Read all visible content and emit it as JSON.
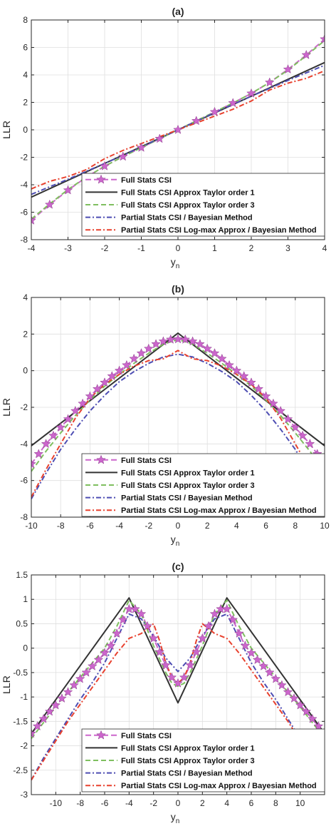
{
  "styles": {
    "full_stats": {
      "color": "#CC66CC",
      "dash": "8,4",
      "marker": "star"
    },
    "taylor1": {
      "color": "#333333",
      "dash": ""
    },
    "taylor3": {
      "color": "#7FBF5F",
      "dash": "7,4"
    },
    "partial_bayes": {
      "color": "#4D4DB3",
      "dash": "7,3,2,3"
    },
    "partial_logmax": {
      "color": "#E8412E",
      "dash": "7,3,2,3"
    }
  },
  "chart_data": [
    {
      "type": "line",
      "title": "(a)",
      "xlabel": "y",
      "xlabel_sub": "n",
      "ylabel": "LLR",
      "xlim": [
        -4,
        4
      ],
      "ylim": [
        -8,
        8
      ],
      "xticks": [
        -4,
        -3,
        -2,
        -1,
        0,
        1,
        2,
        3,
        4
      ],
      "yticks": [
        -8,
        -6,
        -4,
        -2,
        0,
        2,
        4,
        6,
        8
      ],
      "grid": true,
      "legend_position": "bottom-right",
      "series": [
        {
          "name": "Full Stats CSI",
          "style": "full_stats",
          "x": [
            -4,
            -3.5,
            -3,
            -2.5,
            -2,
            -1.5,
            -1,
            -0.5,
            0,
            0.5,
            1,
            1.5,
            2,
            2.5,
            3,
            3.5,
            4
          ],
          "y": [
            -6.6,
            -5.45,
            -4.4,
            -3.45,
            -2.65,
            -1.95,
            -1.3,
            -0.65,
            0,
            0.65,
            1.3,
            1.95,
            2.65,
            3.45,
            4.4,
            5.45,
            6.6
          ]
        },
        {
          "name": "Full Stats CSI Approx Taylor order 1",
          "style": "taylor1",
          "x": [
            -4,
            4
          ],
          "y": [
            -4.9,
            4.9
          ]
        },
        {
          "name": "Full Stats CSI Approx Taylor order 3",
          "style": "taylor3",
          "x": [
            -4,
            -3.5,
            -3,
            -2.5,
            -2,
            -1.5,
            -1,
            -0.5,
            0,
            0.5,
            1,
            1.5,
            2,
            2.5,
            3,
            3.5,
            4
          ],
          "y": [
            -6.5,
            -5.4,
            -4.35,
            -3.45,
            -2.65,
            -1.95,
            -1.3,
            -0.65,
            0,
            0.65,
            1.3,
            1.95,
            2.65,
            3.45,
            4.35,
            5.4,
            6.5
          ]
        },
        {
          "name": "Partial Stats CSI / Bayesian Method",
          "style": "partial_bayes",
          "x": [
            -4,
            -3,
            -2,
            -1,
            0,
            1,
            2,
            3,
            4
          ],
          "y": [
            -4.7,
            -3.6,
            -2.45,
            -1.25,
            0,
            1.25,
            2.45,
            3.6,
            4.7
          ]
        },
        {
          "name": "Partial Stats CSI Log-max Approx / Bayesian Method",
          "style": "partial_logmax",
          "x": [
            -4,
            -3.5,
            -3,
            -2.5,
            -2,
            -1.5,
            -1,
            -0.5,
            0,
            0.5,
            1,
            1.5,
            2,
            2.5,
            3,
            3.5,
            4
          ],
          "y": [
            -4.3,
            -3.75,
            -3.4,
            -2.9,
            -2.1,
            -1.5,
            -1.0,
            -0.5,
            0,
            0.5,
            1.0,
            1.5,
            2.1,
            2.9,
            3.4,
            3.75,
            4.3
          ]
        }
      ]
    },
    {
      "type": "line",
      "title": "(b)",
      "xlabel": "y",
      "xlabel_sub": "n",
      "ylabel": "LLR",
      "xlim": [
        -10,
        10
      ],
      "ylim": [
        -8,
        4
      ],
      "xticks": [
        -10,
        -8,
        -6,
        -4,
        -2,
        0,
        2,
        4,
        6,
        8,
        10
      ],
      "yticks": [
        -8,
        -6,
        -4,
        -2,
        0,
        2,
        4
      ],
      "grid": true,
      "legend_position": "bottom-right",
      "series": [
        {
          "name": "Full Stats CSI",
          "style": "full_stats",
          "x": [
            -10,
            -9.5,
            -9,
            -8.5,
            -8,
            -7.5,
            -7,
            -6.5,
            -6,
            -5.5,
            -5,
            -4.5,
            -4,
            -3.5,
            -3,
            -2.5,
            -2,
            -1.5,
            -1,
            -0.5,
            0,
            0.5,
            1,
            1.5,
            2,
            2.5,
            3,
            3.5,
            4,
            4.5,
            5,
            5.5,
            6,
            6.5,
            7,
            7.5,
            8,
            8.5,
            9,
            9.5,
            10
          ],
          "y": [
            -5.1,
            -4.55,
            -4.0,
            -3.55,
            -3.1,
            -2.65,
            -2.2,
            -1.8,
            -1.4,
            -1.0,
            -0.65,
            -0.3,
            0.0,
            0.3,
            0.65,
            0.95,
            1.2,
            1.45,
            1.6,
            1.7,
            1.72,
            1.7,
            1.6,
            1.45,
            1.2,
            0.95,
            0.65,
            0.3,
            0.0,
            -0.3,
            -0.65,
            -1.0,
            -1.4,
            -1.8,
            -2.2,
            -2.65,
            -3.1,
            -3.55,
            -4.0,
            -4.55,
            -5.1
          ]
        },
        {
          "name": "Full Stats CSI Approx Taylor order 1",
          "style": "taylor1",
          "x": [
            -10,
            0,
            10
          ],
          "y": [
            -4.1,
            2.05,
            -4.1
          ]
        },
        {
          "name": "Full Stats CSI Approx Taylor order 3",
          "style": "taylor3",
          "x": [
            -10,
            -9,
            -8,
            -7,
            -6,
            -5,
            -4,
            -3,
            -2,
            -1,
            0,
            1,
            2,
            3,
            4,
            5,
            6,
            7,
            8,
            9,
            10
          ],
          "y": [
            -5.5,
            -4.4,
            -3.4,
            -2.45,
            -1.6,
            -0.85,
            -0.2,
            0.4,
            0.95,
            1.45,
            1.7,
            1.45,
            0.95,
            0.4,
            -0.2,
            -0.85,
            -1.6,
            -2.45,
            -3.4,
            -4.4,
            -5.5
          ]
        },
        {
          "name": "Partial Stats CSI / Bayesian Method",
          "style": "partial_bayes",
          "x": [
            -10,
            -9,
            -8,
            -7,
            -6,
            -5,
            -4,
            -3,
            -2,
            -1,
            0,
            1,
            2,
            3,
            4,
            5,
            6,
            7,
            8,
            9,
            10
          ],
          "y": [
            -7.0,
            -5.6,
            -4.3,
            -3.2,
            -2.2,
            -1.35,
            -0.6,
            -0.05,
            0.4,
            0.75,
            0.9,
            0.75,
            0.4,
            -0.05,
            -0.6,
            -1.35,
            -2.2,
            -3.2,
            -4.3,
            -5.6,
            -7.0
          ]
        },
        {
          "name": "Partial Stats CSI Log-max Approx / Bayesian Method",
          "style": "partial_logmax",
          "x": [
            -10,
            -9,
            -8,
            -7,
            -6,
            -5,
            -4,
            -3,
            -2,
            -1,
            0,
            1,
            2,
            3,
            4,
            5,
            6,
            7,
            8,
            9,
            10
          ],
          "y": [
            -6.9,
            -5.4,
            -4.0,
            -2.6,
            -1.5,
            -0.75,
            -0.2,
            0.25,
            0.55,
            0.65,
            1.1,
            0.65,
            0.55,
            0.25,
            -0.2,
            -0.75,
            -1.5,
            -2.6,
            -4.0,
            -5.4,
            -6.9
          ]
        }
      ]
    },
    {
      "type": "line",
      "title": "(c)",
      "xlabel": "y",
      "xlabel_sub": "n",
      "ylabel": "LLR",
      "xlim": [
        -12,
        12
      ],
      "ylim": [
        -3,
        1.5
      ],
      "xticks": [
        -10,
        -8,
        -6,
        -4,
        -2,
        0,
        2,
        4,
        6,
        8,
        10
      ],
      "yticks": [
        -3,
        -2.5,
        -2,
        -1.5,
        -1,
        -0.5,
        0,
        0.5,
        1,
        1.5
      ],
      "grid": true,
      "legend_position": "bottom-right",
      "series": [
        {
          "name": "Full Stats CSI",
          "style": "full_stats",
          "x": [
            -12,
            -11.5,
            -11,
            -10.5,
            -10,
            -9.5,
            -9,
            -8.5,
            -8,
            -7.5,
            -7,
            -6.5,
            -6,
            -5.5,
            -5,
            -4.5,
            -4,
            -3.5,
            -3,
            -2.5,
            -2,
            -1.5,
            -1,
            -0.5,
            0,
            0.5,
            1,
            1.5,
            2,
            2.5,
            3,
            3.5,
            4,
            4.5,
            5,
            5.5,
            6,
            6.5,
            7,
            7.5,
            8,
            8.5,
            9,
            9.5,
            10,
            10.5,
            11,
            11.5,
            12
          ],
          "y": [
            -1.75,
            -1.6,
            -1.45,
            -1.3,
            -1.17,
            -1.03,
            -0.9,
            -0.76,
            -0.63,
            -0.5,
            -0.37,
            -0.24,
            -0.1,
            0.05,
            0.3,
            0.58,
            0.8,
            0.8,
            0.7,
            0.45,
            0.2,
            -0.08,
            -0.35,
            -0.6,
            -0.72,
            -0.6,
            -0.35,
            -0.08,
            0.2,
            0.45,
            0.7,
            0.8,
            0.8,
            0.58,
            0.3,
            0.05,
            -0.1,
            -0.24,
            -0.37,
            -0.5,
            -0.63,
            -0.76,
            -0.9,
            -1.03,
            -1.17,
            -1.3,
            -1.45,
            -1.6,
            -1.75
          ]
        },
        {
          "name": "Full Stats CSI Approx Taylor order 1",
          "style": "taylor1",
          "x": [
            -12,
            -4,
            0,
            4,
            12
          ],
          "y": [
            -1.75,
            1.03,
            -1.12,
            1.03,
            -1.75
          ]
        },
        {
          "name": "Full Stats CSI Approx Taylor order 3",
          "style": "taylor3",
          "x": [
            -12,
            -10,
            -8,
            -6,
            -5,
            -4,
            -3,
            -2,
            -1,
            -0.5,
            0,
            0.5,
            1,
            2,
            3,
            4,
            5,
            6,
            8,
            10,
            12
          ],
          "y": [
            -1.85,
            -1.2,
            -0.6,
            0.0,
            0.45,
            0.98,
            0.7,
            0.05,
            -0.5,
            -0.72,
            -0.78,
            -0.72,
            -0.5,
            0.05,
            0.7,
            0.98,
            0.45,
            0.0,
            -0.6,
            -1.2,
            -1.85
          ]
        },
        {
          "name": "Partial Stats CSI / Bayesian Method",
          "style": "partial_bayes",
          "x": [
            -12,
            -11,
            -10,
            -9,
            -8,
            -7,
            -6,
            -5,
            -4,
            -3,
            -2,
            -1,
            0,
            1,
            2,
            3,
            4,
            5,
            6,
            7,
            8,
            9,
            10,
            11,
            12
          ],
          "y": [
            -2.7,
            -2.25,
            -1.85,
            -1.45,
            -1.05,
            -0.7,
            -0.3,
            0.2,
            0.7,
            0.6,
            0.25,
            -0.2,
            -0.48,
            -0.2,
            0.25,
            0.6,
            0.7,
            0.2,
            -0.3,
            -0.7,
            -1.05,
            -1.45,
            -1.85,
            -2.25,
            -2.7
          ]
        },
        {
          "name": "Partial Stats CSI Log-max Approx / Bayesian Method",
          "style": "partial_logmax",
          "x": [
            -12,
            -11,
            -10,
            -9,
            -8,
            -7,
            -6,
            -5,
            -4,
            -3,
            -2,
            -1.5,
            -1,
            -0.5,
            0,
            0.5,
            1,
            1.5,
            2,
            3,
            4,
            5,
            6,
            7,
            8,
            9,
            10,
            11,
            12
          ],
          "y": [
            -2.7,
            -2.3,
            -1.9,
            -1.5,
            -1.15,
            -0.8,
            -0.45,
            -0.1,
            0.2,
            0.3,
            0.5,
            0.15,
            -0.3,
            -0.6,
            -0.72,
            -0.6,
            -0.3,
            0.15,
            0.5,
            0.3,
            0.2,
            -0.1,
            -0.45,
            -0.8,
            -1.15,
            -1.5,
            -1.9,
            -2.3,
            -2.7
          ]
        }
      ]
    }
  ]
}
